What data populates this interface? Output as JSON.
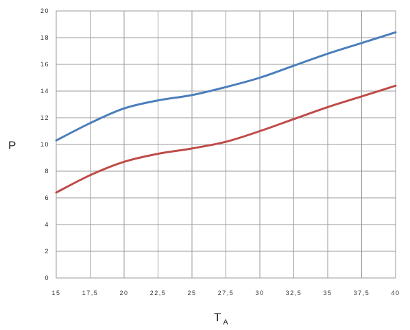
{
  "chart_data": {
    "type": "line",
    "title": "",
    "xlabel": "T",
    "xlabel_subscript": "A",
    "ylabel": "P",
    "xlim": [
      15,
      40
    ],
    "ylim": [
      0,
      20
    ],
    "grid": true,
    "x_ticks": [
      15,
      17.5,
      20,
      22.5,
      25,
      27.5,
      30,
      32.5,
      35,
      37.5,
      40
    ],
    "x_tick_labels": [
      "15",
      "17,5",
      "20",
      "22,5",
      "25",
      "27,5",
      "30",
      "32,5",
      "35",
      "37,5",
      "40"
    ],
    "y_ticks": [
      0,
      2,
      4,
      6,
      8,
      10,
      12,
      14,
      16,
      18,
      20
    ],
    "y_tick_labels": [
      "0",
      "2",
      "4",
      "6",
      "8",
      "10",
      "12",
      "14",
      "16",
      "18",
      "20"
    ],
    "x": [
      15,
      17.5,
      20,
      22.5,
      25,
      27.5,
      30,
      32.5,
      35,
      37.5,
      40
    ],
    "series": [
      {
        "color": "#4a7ebb",
        "values": [
          10.3,
          11.6,
          12.7,
          13.3,
          13.7,
          14.3,
          15.0,
          15.9,
          16.8,
          17.6,
          18.4
        ]
      },
      {
        "color": "#be4b48",
        "values": [
          6.4,
          7.7,
          8.7,
          9.3,
          9.7,
          10.2,
          11.0,
          11.9,
          12.8,
          13.6,
          14.4
        ]
      }
    ]
  }
}
